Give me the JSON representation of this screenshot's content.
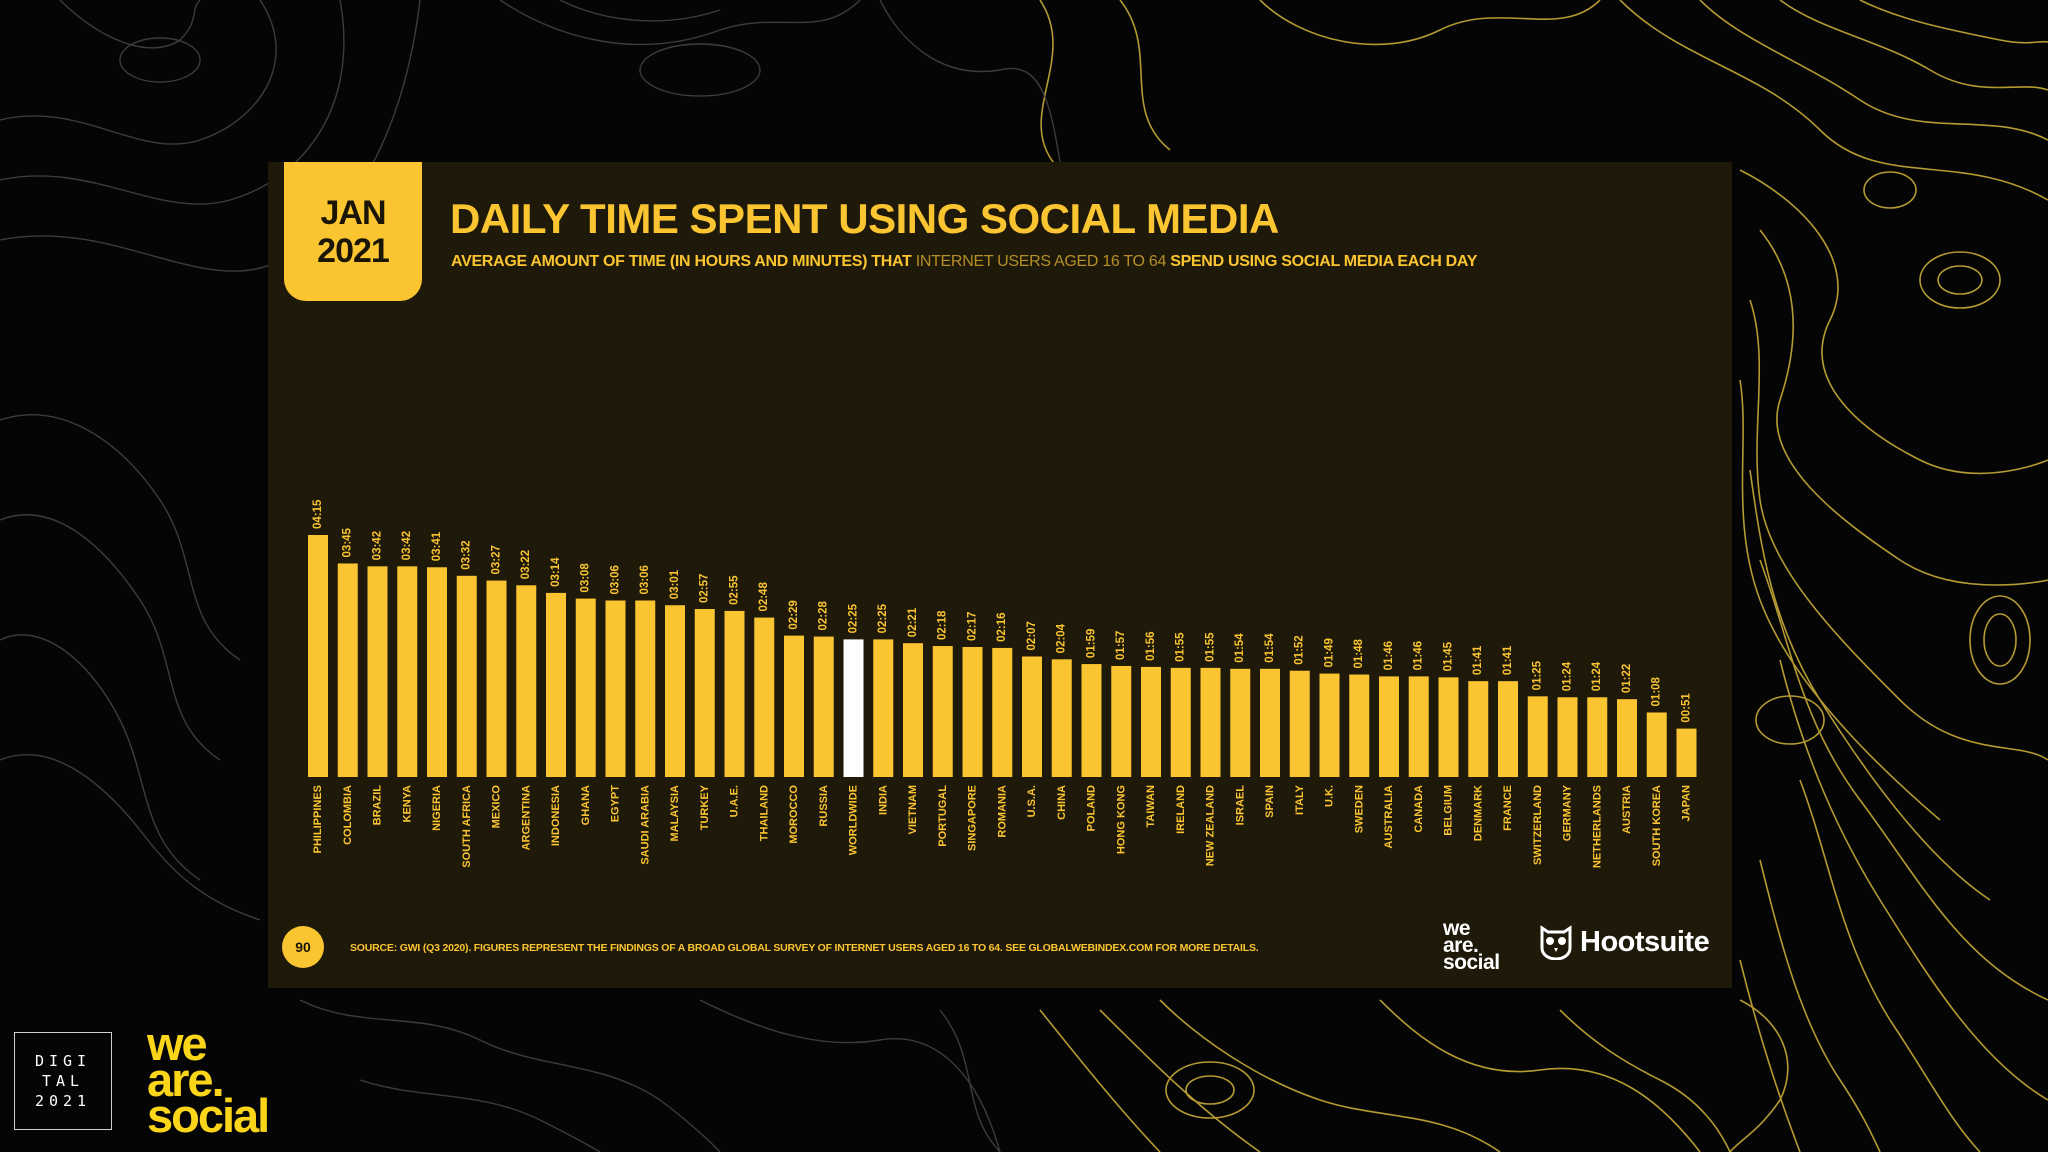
{
  "slide": {
    "badge_month": "JAN",
    "badge_year": "2021",
    "title": "DAILY TIME SPENT USING SOCIAL MEDIA",
    "subtitle_part1": "AVERAGE AMOUNT OF TIME (IN HOURS AND MINUTES) THAT ",
    "subtitle_part2": "INTERNET USERS AGED 16 TO 64",
    "subtitle_part3": " SPEND USING SOCIAL MEDIA EACH DAY",
    "page_number": "90",
    "source": "SOURCE: GWI (Q3 2020). FIGURES REPRESENT THE FINDINGS OF A BROAD GLOBAL SURVEY OF INTERNET USERS AGED 16 TO 64. SEE GLOBALWEBINDEX.COM FOR MORE DETAILS.",
    "brand_we": "we",
    "brand_are": "are.",
    "brand_social": "social",
    "hootsuite": "Hootsuite"
  },
  "corner": {
    "digital_line1": "DIGI",
    "digital_line2": "TAL",
    "digital_line3": "2021",
    "brand_we": "we",
    "brand_are": "are.",
    "brand_social": "social"
  },
  "colors": {
    "bar": "#fbc531",
    "highlight_bar": "#ffffff",
    "card_bg": "#1e1909",
    "contour": "#d4b53a"
  },
  "chart_data": {
    "type": "bar",
    "title": "DAILY TIME SPENT USING SOCIAL MEDIA",
    "categories": [
      "PHILIPPINES",
      "COLOMBIA",
      "BRAZIL",
      "KENYA",
      "NIGERIA",
      "SOUTH AFRICA",
      "MEXICO",
      "ARGENTINA",
      "INDONESIA",
      "GHANA",
      "EGYPT",
      "SAUDI ARABIA",
      "MALAYSIA",
      "TURKEY",
      "U.A.E.",
      "THAILAND",
      "MOROCCO",
      "RUSSIA",
      "WORLDWIDE",
      "INDIA",
      "VIETNAM",
      "PORTUGAL",
      "SINGAPORE",
      "ROMANIA",
      "U.S.A.",
      "CHINA",
      "POLAND",
      "HONG KONG",
      "TAIWAN",
      "IRELAND",
      "NEW ZEALAND",
      "ISRAEL",
      "SPAIN",
      "ITALY",
      "U.K.",
      "SWEDEN",
      "AUSTRALIA",
      "CANADA",
      "BELGIUM",
      "DENMARK",
      "FRANCE",
      "SWITZERLAND",
      "GERMANY",
      "NETHERLANDS",
      "AUSTRIA",
      "SOUTH KOREA",
      "JAPAN"
    ],
    "labels": [
      "04:15",
      "03:45",
      "03:42",
      "03:42",
      "03:41",
      "03:32",
      "03:27",
      "03:22",
      "03:14",
      "03:08",
      "03:06",
      "03:06",
      "03:01",
      "02:57",
      "02:55",
      "02:48",
      "02:29",
      "02:28",
      "02:25",
      "02:25",
      "02:21",
      "02:18",
      "02:17",
      "02:16",
      "02:07",
      "02:04",
      "01:59",
      "01:57",
      "01:56",
      "01:55",
      "01:55",
      "01:54",
      "01:54",
      "01:52",
      "01:49",
      "01:48",
      "01:46",
      "01:46",
      "01:45",
      "01:41",
      "01:41",
      "01:25",
      "01:24",
      "01:24",
      "01:22",
      "01:08",
      "00:51"
    ],
    "values_minutes": [
      255,
      225,
      222,
      222,
      221,
      212,
      207,
      202,
      194,
      188,
      186,
      186,
      181,
      177,
      175,
      168,
      149,
      148,
      145,
      145,
      141,
      138,
      137,
      136,
      127,
      124,
      119,
      117,
      116,
      115,
      115,
      114,
      114,
      112,
      109,
      108,
      106,
      106,
      105,
      101,
      101,
      85,
      84,
      84,
      82,
      68,
      51
    ],
    "highlight": "WORLDWIDE",
    "ylim": [
      0,
      255
    ]
  }
}
